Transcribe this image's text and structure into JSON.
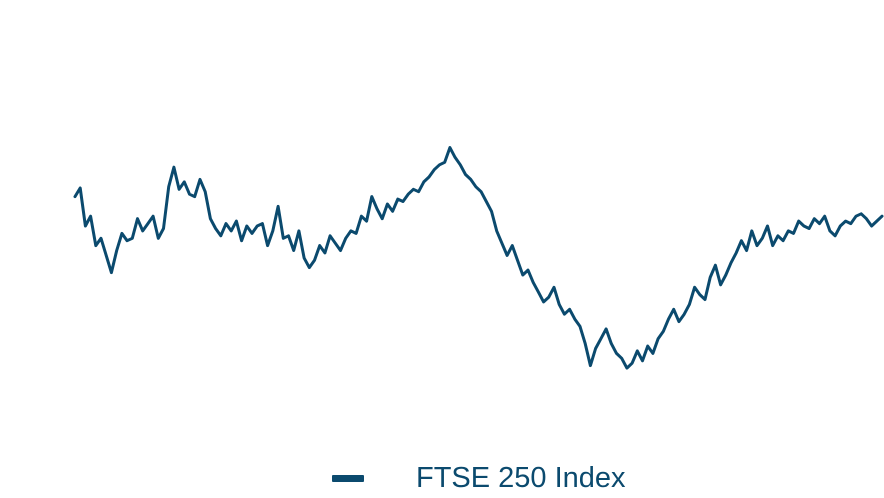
{
  "chart_data": {
    "type": "line",
    "series": [
      {
        "name": "FTSE 250 Index",
        "color": "#0b4a6e",
        "values": [
          72.0,
          75.5,
          60.0,
          64.0,
          52.0,
          55.0,
          48.0,
          41.0,
          50.0,
          57.0,
          54.0,
          55.0,
          63.0,
          58.0,
          61.0,
          64.0,
          55.0,
          59.0,
          76.0,
          84.0,
          75.0,
          78.0,
          73.0,
          72.0,
          79.0,
          74.0,
          63.0,
          59.0,
          56.0,
          61.0,
          58.0,
          62.0,
          54.0,
          60.0,
          57.0,
          60.0,
          61.0,
          52.0,
          58.0,
          68.0,
          55.0,
          56.0,
          50.0,
          58.0,
          47.0,
          43.0,
          46.0,
          52.0,
          49.0,
          56.0,
          53.0,
          50.0,
          55.0,
          58.0,
          57.0,
          64.0,
          62.0,
          72.0,
          67.0,
          63.0,
          69.0,
          66.0,
          71.0,
          70.0,
          73.0,
          75.0,
          74.0,
          78.0,
          80.0,
          83.0,
          85.0,
          86.0,
          92.0,
          88.0,
          85.0,
          81.0,
          79.0,
          76.0,
          74.0,
          70.0,
          66.0,
          58.0,
          53.0,
          48.0,
          52.0,
          46.0,
          40.0,
          42.0,
          37.0,
          33.0,
          29.0,
          31.0,
          35.0,
          28.0,
          24.0,
          26.0,
          22.0,
          19.0,
          12.0,
          3.0,
          10.0,
          14.0,
          18.0,
          12.0,
          8.0,
          6.0,
          2.0,
          4.0,
          9.0,
          5.0,
          11.0,
          8.0,
          14.0,
          17.0,
          22.0,
          26.0,
          21.0,
          24.0,
          28.0,
          35.0,
          32.0,
          30.0,
          39.0,
          44.0,
          36.0,
          40.0,
          45.0,
          49.0,
          54.0,
          50.0,
          58.0,
          52.0,
          55.0,
          60.0,
          52.0,
          56.0,
          54.0,
          58.0,
          57.0,
          62.0,
          60.0,
          59.0,
          63.0,
          61.0,
          64.0,
          58.0,
          56.0,
          60.0,
          62.0,
          61.0,
          64.0,
          65.0,
          63.0,
          60.0,
          62.0,
          64.0
        ]
      }
    ],
    "legend": "bottom-center",
    "grid": false,
    "ylim": [
      0,
      100
    ]
  }
}
